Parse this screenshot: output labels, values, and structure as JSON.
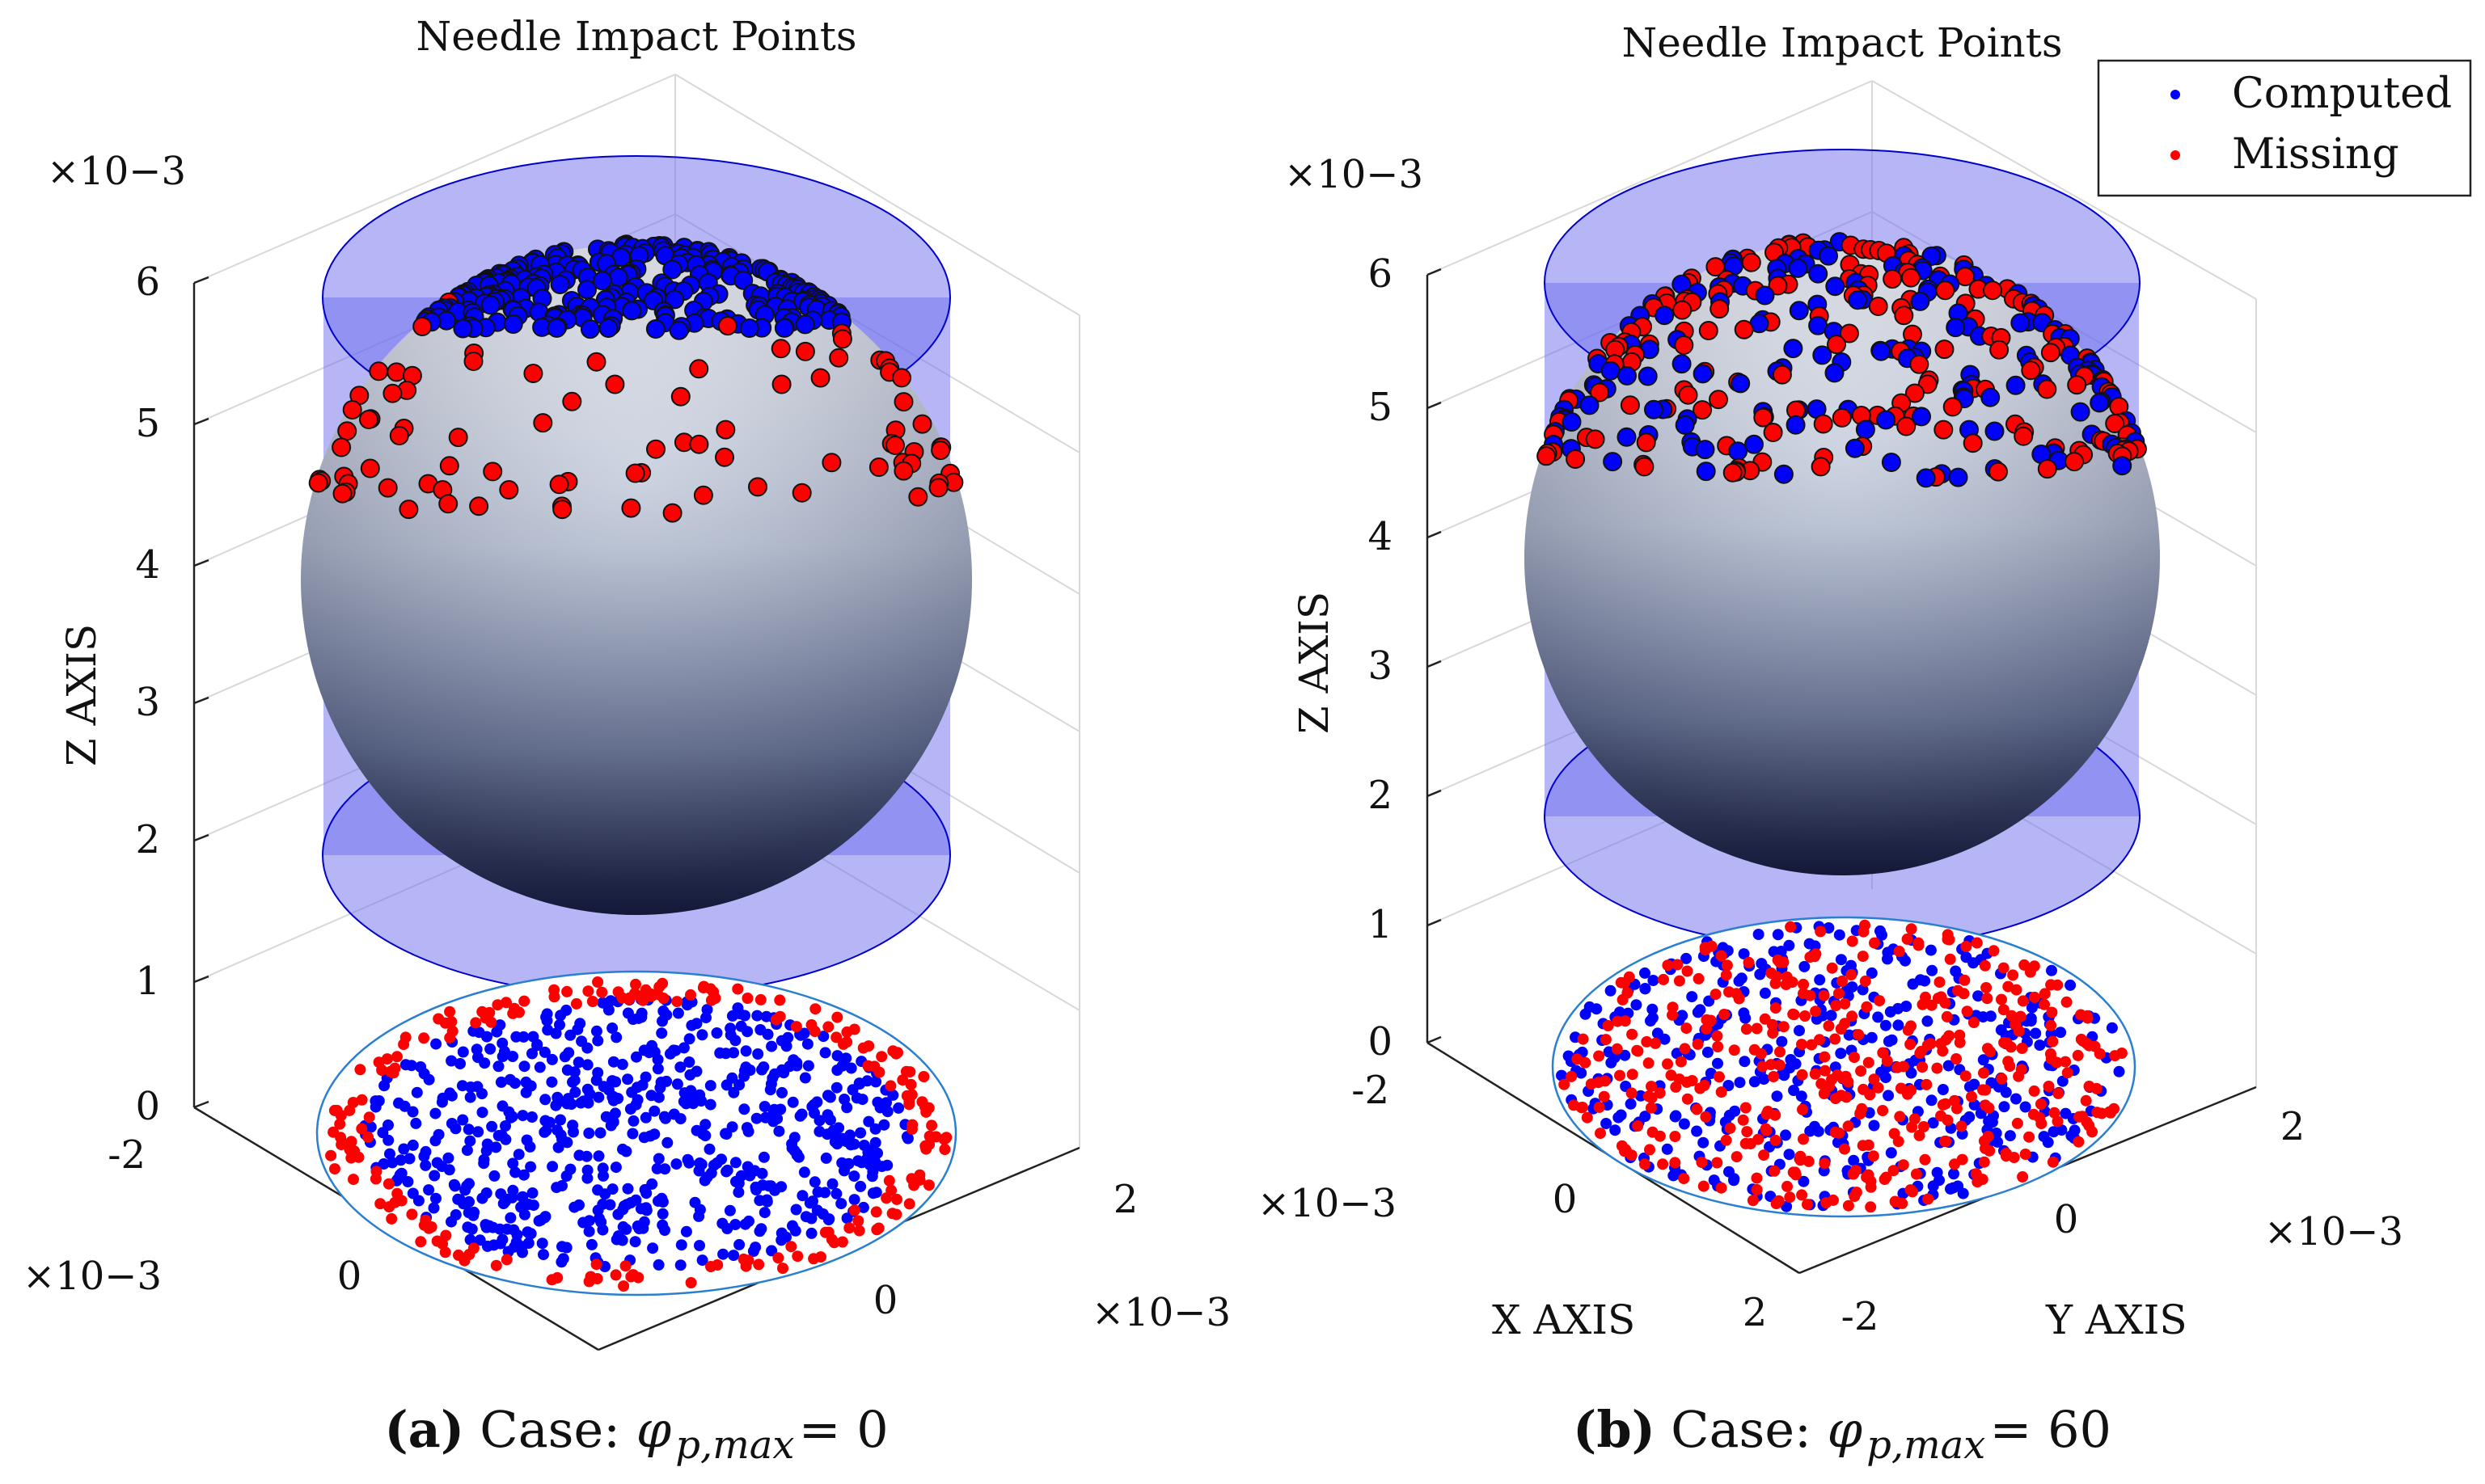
{
  "chart_data": [
    {
      "type": "scatter",
      "subtype": "3d-scatter",
      "panel": "a",
      "title": "Needle Impact Points",
      "xlabel": "",
      "ylabel": "",
      "zlabel": "Z AXIS",
      "z_exponent": "×10−3",
      "x_exponent": "×10−3",
      "y_exponent": "×10−3",
      "zticks": [
        "0",
        "1",
        "2",
        "3",
        "4",
        "5",
        "6"
      ],
      "zlim": [
        0,
        6
      ],
      "xticks": [
        "-2",
        "0"
      ],
      "yticks": [
        "0",
        "2"
      ],
      "xlim": [
        -2,
        2
      ],
      "ylim": [
        -2,
        2
      ],
      "caption_label": "(a)",
      "caption_text": "Case: ",
      "caption_symbol": "φ",
      "caption_sub": "p,max",
      "caption_value": " = 0",
      "series": [
        {
          "name": "Computed",
          "color": "#0000ff",
          "sphere_band": [
            0.0,
            0.22
          ],
          "approx_count": 1100
        },
        {
          "name": "Missing",
          "color": "#ff0000",
          "sphere_band": [
            0.18,
            0.42
          ],
          "approx_count": 350
        }
      ]
    },
    {
      "type": "scatter",
      "subtype": "3d-scatter",
      "panel": "b",
      "title": "Needle Impact Points",
      "xlabel": "X AXIS",
      "ylabel": "Y AXIS",
      "zlabel": "Z AXIS",
      "z_exponent": "×10−3",
      "x_exponent": "×10−3",
      "y_exponent": "×10−3",
      "zticks": [
        "0",
        "1",
        "2",
        "3",
        "4",
        "5",
        "6"
      ],
      "zlim": [
        0,
        6
      ],
      "xticks": [
        "-2",
        "0",
        "2"
      ],
      "yticks": [
        "-2",
        "0",
        "2"
      ],
      "xlim": [
        -2,
        2
      ],
      "ylim": [
        -2,
        2
      ],
      "caption_label": "(b)",
      "caption_text": "Case: ",
      "caption_symbol": "φ",
      "caption_sub": "p,max",
      "caption_value": " = 60",
      "legend": {
        "position": "top-right",
        "entries": [
          "Computed",
          "Missing"
        ]
      },
      "series": [
        {
          "name": "Computed",
          "color": "#0000ff",
          "sphere_band": [
            0.0,
            0.4
          ],
          "approx_count": 700
        },
        {
          "name": "Missing",
          "color": "#ff0000",
          "sphere_band": [
            0.0,
            0.4
          ],
          "approx_count": 700
        }
      ]
    }
  ]
}
